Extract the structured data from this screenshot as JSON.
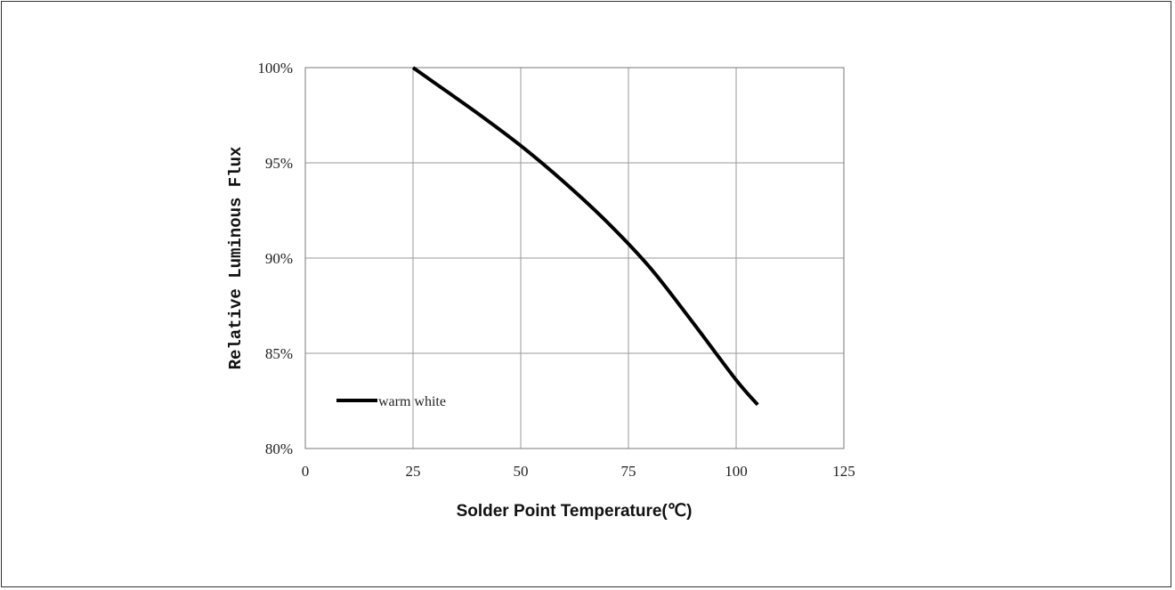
{
  "chart_data": {
    "type": "line",
    "title": "",
    "xlabel": "Solder Point Temperature(℃)",
    "ylabel": "Relative Luminous Flux",
    "xlim": [
      0,
      125
    ],
    "ylim": [
      80,
      100
    ],
    "x_ticks": [
      "0",
      "25",
      "50",
      "75",
      "100",
      "125"
    ],
    "y_ticks": [
      "80%",
      "85%",
      "90%",
      "95%",
      "100%"
    ],
    "grid": true,
    "legend_position": "bottom-left",
    "series": [
      {
        "name": "warm white",
        "color": "#000000",
        "x": [
          25,
          30,
          40,
          50,
          60,
          70,
          80,
          90,
          100,
          105
        ],
        "y": [
          100,
          99.2,
          97.6,
          95.9,
          94.0,
          91.9,
          89.5,
          86.6,
          83.6,
          82.3
        ]
      }
    ]
  }
}
